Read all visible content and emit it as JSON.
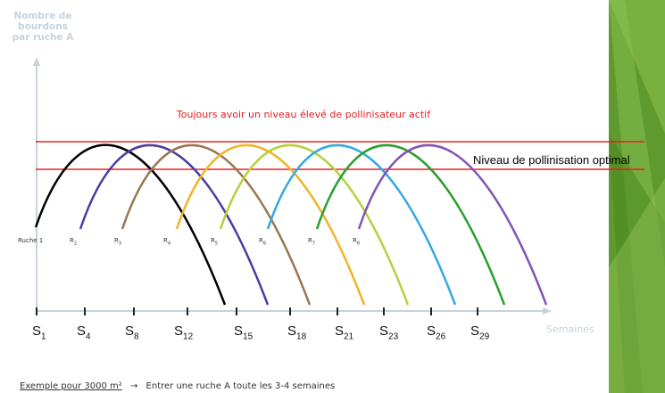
{
  "y_axis_label": [
    "Nombre de",
    "bourdons",
    "par ruche A"
  ],
  "title": "Toujours avoir un niveau élevé de pollinisateur actif",
  "optimal_label": "Niveau de pollinisation optimal",
  "hives": [
    {
      "main": "Ruche 1"
    },
    {
      "main": "R",
      "sub": "2"
    },
    {
      "main": "R",
      "sub": "3"
    },
    {
      "main": "R",
      "sub": "4"
    },
    {
      "main": "R",
      "sub": "5"
    },
    {
      "main": "R",
      "sub": "6"
    },
    {
      "main": "R",
      "sub": "7"
    },
    {
      "main": "R",
      "sub": "8"
    }
  ],
  "x_ticks": [
    {
      "main": "S",
      "sub": "1"
    },
    {
      "main": "S",
      "sub": "4"
    },
    {
      "main": "S",
      "sub": "8"
    },
    {
      "main": "S",
      "sub": "12"
    },
    {
      "main": "S",
      "sub": "15"
    },
    {
      "main": "S",
      "sub": "18"
    },
    {
      "main": "S",
      "sub": "21"
    },
    {
      "main": "S",
      "sub": "23"
    },
    {
      "main": "S",
      "sub": "26"
    },
    {
      "main": "S",
      "sub": "29"
    }
  ],
  "x_axis_label": "Semaines",
  "footer": {
    "example": "Exemple pour 3000 m²",
    "arrow": "→",
    "text": "Entrer une ruche A toute les 3-4 semaines"
  }
}
